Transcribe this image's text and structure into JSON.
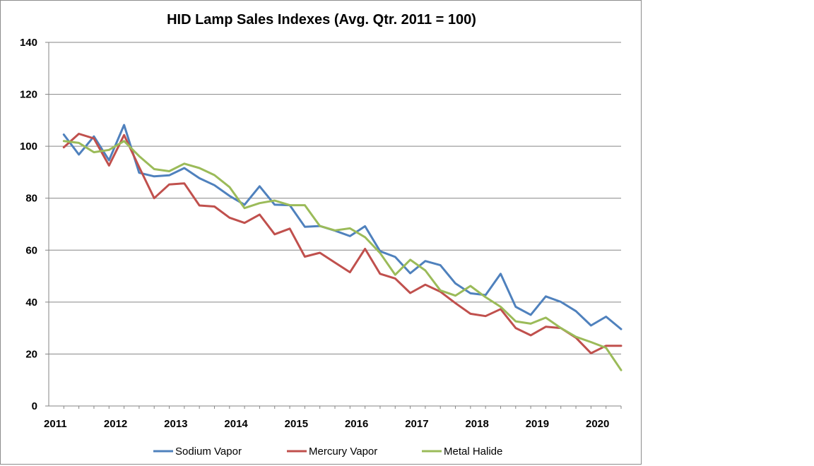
{
  "chart_data": {
    "type": "line",
    "title": "HID Lamp Sales Indexes (Avg. Qtr. 2011 = 100)",
    "xlabel": "",
    "ylabel": "",
    "ylim": [
      0,
      140
    ],
    "yticks": [
      "0",
      "20",
      "40",
      "60",
      "80",
      "100",
      "120",
      "140"
    ],
    "xticks": [
      "2011",
      "2012",
      "2013",
      "2014",
      "2015",
      "2016",
      "2017",
      "2018",
      "2019",
      "2020"
    ],
    "grid": true,
    "legend_position": "bottom",
    "x": [
      2011.0,
      2011.25,
      2011.5,
      2011.75,
      2012.0,
      2012.25,
      2012.5,
      2012.75,
      2013.0,
      2013.25,
      2013.5,
      2013.75,
      2014.0,
      2014.25,
      2014.5,
      2014.75,
      2015.0,
      2015.25,
      2015.5,
      2015.75,
      2016.0,
      2016.25,
      2016.5,
      2016.75,
      2017.0,
      2017.25,
      2017.5,
      2017.75,
      2018.0,
      2018.25,
      2018.5,
      2018.75,
      2019.0,
      2019.25,
      2019.5,
      2019.75,
      2020.0,
      2020.25
    ],
    "series": [
      {
        "name": "Sodium Vapor",
        "color": "#4f81bd",
        "values": [
          104.5,
          96.8,
          103.8,
          94.6,
          108.2,
          89.8,
          88.4,
          88.8,
          91.6,
          87.7,
          85.0,
          80.9,
          77.5,
          84.6,
          77.5,
          77.3,
          69.0,
          69.3,
          67.5,
          65.4,
          69.2,
          59.6,
          57.4,
          51.1,
          55.8,
          54.2,
          47.2,
          43.4,
          42.7,
          50.9,
          38.2,
          35.1,
          42.2,
          40.1,
          36.5,
          31.0,
          34.4,
          29.6
        ]
      },
      {
        "name": "Mercury Vapor",
        "color": "#c0504d",
        "values": [
          99.6,
          104.8,
          103.0,
          92.6,
          104.3,
          92.0,
          80.0,
          85.3,
          85.7,
          77.2,
          76.8,
          72.5,
          70.5,
          73.7,
          66.1,
          68.3,
          57.5,
          59.0,
          55.2,
          51.5,
          60.5,
          50.9,
          49.1,
          43.5,
          46.7,
          44.0,
          39.6,
          35.5,
          34.6,
          37.3,
          30.0,
          27.2,
          30.5,
          30.0,
          26.3,
          20.3,
          23.2,
          23.2
        ]
      },
      {
        "name": "Metal Halide",
        "color": "#9bbb59",
        "values": [
          102.0,
          101.3,
          97.7,
          98.6,
          102.0,
          96.2,
          91.2,
          90.4,
          93.3,
          91.6,
          88.9,
          84.3,
          76.2,
          78.1,
          79.1,
          77.3,
          77.3,
          69.3,
          67.6,
          68.4,
          65.0,
          58.9,
          50.5,
          56.3,
          52.2,
          44.5,
          42.5,
          46.2,
          41.9,
          38.2,
          32.6,
          31.7,
          34.0,
          30.0,
          26.6,
          24.6,
          22.4,
          13.8
        ]
      }
    ]
  }
}
